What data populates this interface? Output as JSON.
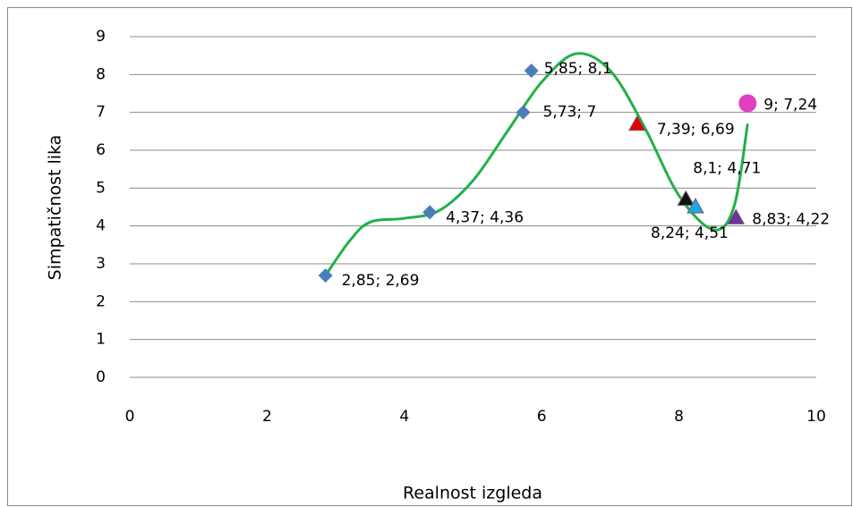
{
  "chart_data": {
    "type": "scatter",
    "x_label": "Realnost izgleda",
    "y_label": "Simpatičnost lika",
    "xlim": [
      0,
      10
    ],
    "xticks": [
      0,
      2,
      4,
      6,
      8,
      10
    ],
    "ylim": [
      0,
      9
    ],
    "yticks": [
      0,
      1,
      2,
      3,
      4,
      5,
      6,
      7,
      8,
      9
    ],
    "grid": true,
    "series": [
      {
        "marker": "diamond",
        "color": "#4a7ebb",
        "x": [
          2.85,
          4.37,
          5.73,
          5.85
        ],
        "values": [
          2.69,
          4.36,
          7,
          8.1
        ],
        "value_labels": [
          "2,85; 2,69",
          "4,37; 4,36",
          "5,73; 7",
          "5,85; 8,1"
        ]
      },
      {
        "marker": "triangle",
        "color": "#e00000",
        "x": [
          7.39
        ],
        "values": [
          6.69
        ],
        "value_labels": [
          "7,39; 6,69"
        ]
      },
      {
        "marker": "triangle",
        "color": "#111111",
        "x": [
          8.1
        ],
        "values": [
          4.71
        ],
        "value_labels": [
          "8,1; 4,71"
        ]
      },
      {
        "marker": "triangle",
        "color": "#1fa6e0",
        "x": [
          8.24
        ],
        "values": [
          4.51
        ],
        "value_labels": [
          "8,24; 4,51"
        ]
      },
      {
        "marker": "triangle",
        "color": "#7030a0",
        "x": [
          8.83
        ],
        "values": [
          4.22
        ],
        "value_labels": [
          "8,83; 4,22"
        ]
      },
      {
        "marker": "circle",
        "color": "#e040c0",
        "x": [
          9
        ],
        "values": [
          7.24
        ],
        "value_labels": [
          "9; 7,24"
        ]
      }
    ],
    "trend": {
      "color": "#22b04a",
      "x": [
        2.85,
        3.2,
        3.5,
        4,
        4.5,
        5,
        5.5,
        6,
        6.5,
        7,
        7.5,
        8,
        8.5,
        8.8,
        9
      ],
      "values": [
        2.69,
        3.6,
        4.1,
        4.2,
        4.4,
        5.2,
        6.5,
        7.8,
        8.55,
        8.1,
        6.6,
        4.8,
        3.9,
        4.5,
        6.7
      ]
    }
  }
}
